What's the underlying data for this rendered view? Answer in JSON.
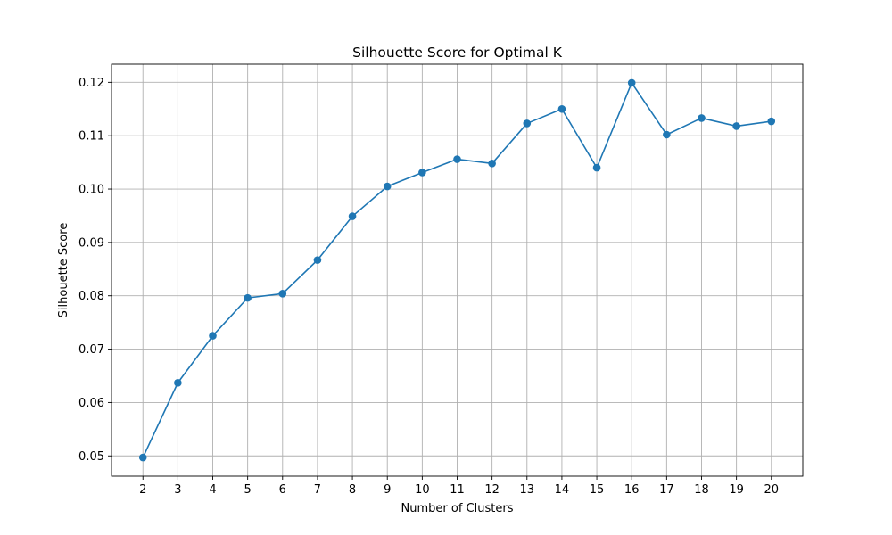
{
  "chart_data": {
    "type": "line",
    "title": "Silhouette Score for Optimal K",
    "xlabel": "Number of Clusters",
    "ylabel": "Silhouette Score",
    "x": [
      2,
      3,
      4,
      5,
      6,
      7,
      8,
      9,
      10,
      11,
      12,
      13,
      14,
      15,
      16,
      17,
      18,
      19,
      20
    ],
    "y": [
      0.0497,
      0.0637,
      0.0725,
      0.0796,
      0.0804,
      0.0867,
      0.0949,
      0.1005,
      0.1031,
      0.1056,
      0.1048,
      0.1123,
      0.115,
      0.104,
      0.1199,
      0.1102,
      0.1133,
      0.1118,
      0.1127
    ],
    "xticks": [
      "2",
      "3",
      "4",
      "5",
      "6",
      "7",
      "8",
      "9",
      "10",
      "11",
      "12",
      "13",
      "14",
      "15",
      "16",
      "17",
      "18",
      "19",
      "20"
    ],
    "yticks": [
      "0.05",
      "0.06",
      "0.07",
      "0.08",
      "0.09",
      "0.10",
      "0.11",
      "0.12"
    ],
    "ytick_values": [
      0.05,
      0.06,
      0.07,
      0.08,
      0.09,
      0.1,
      0.11,
      0.12
    ],
    "xlim": [
      1.1,
      20.9
    ],
    "ylim": [
      0.0462,
      0.1234
    ],
    "grid": true,
    "marker": "circle",
    "colors": {
      "series": "#1f77b4",
      "grid": "#b0b0b0",
      "axis": "#000000"
    }
  }
}
